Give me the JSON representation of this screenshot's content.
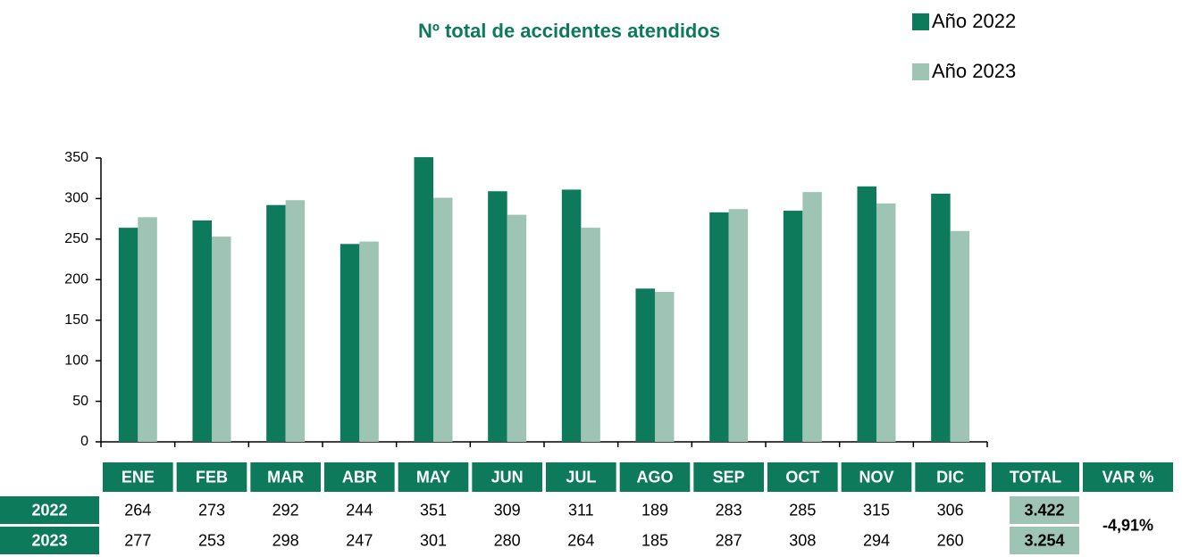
{
  "chart_data": {
    "type": "bar",
    "title": "Nº total de accidentes atendidos",
    "categories": [
      "ENE",
      "FEB",
      "MAR",
      "ABR",
      "MAY",
      "JUN",
      "JUL",
      "AGO",
      "SEP",
      "OCT",
      "NOV",
      "DIC"
    ],
    "series": [
      {
        "name": "Año 2022",
        "color": "#0e7a5c",
        "values": [
          264,
          273,
          292,
          244,
          351,
          309,
          311,
          189,
          283,
          285,
          315,
          306
        ]
      },
      {
        "name": "Año 2023",
        "color": "#9dc4b5",
        "values": [
          277,
          253,
          298,
          247,
          301,
          280,
          264,
          185,
          287,
          308,
          294,
          260
        ]
      }
    ],
    "ylim": [
      0,
      350
    ],
    "yticks": [
      0,
      50,
      100,
      150,
      200,
      250,
      300,
      350
    ],
    "legend": "top-right"
  },
  "table": {
    "total_header": "TOTAL",
    "var_header": "VAR %",
    "rows": [
      {
        "label": "2022",
        "total": "3.422"
      },
      {
        "label": "2023",
        "total": "3.254"
      }
    ],
    "var": "-4,91%"
  }
}
